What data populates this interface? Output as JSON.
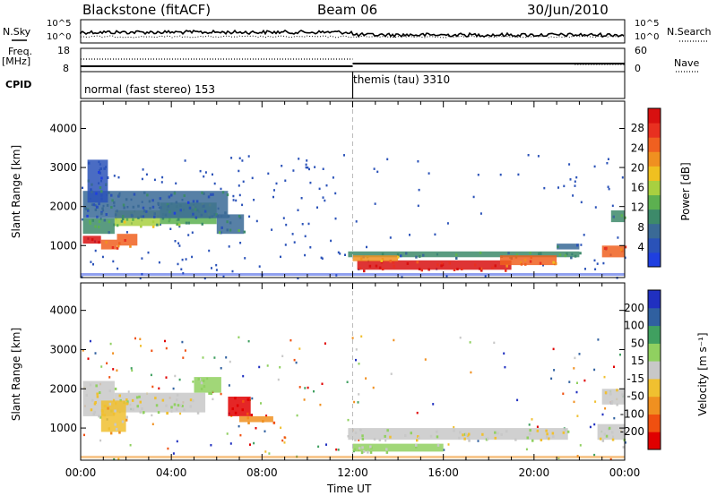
{
  "header": {
    "radar": "Blackstone (fitACF)",
    "beam": "Beam 06",
    "date": "30/Jun/2010"
  },
  "aux": {
    "nsky_label": "N.Sky",
    "nsky_ticks": [
      "10^5",
      "10^0"
    ],
    "nsearch_label": "N.Search",
    "nsearch_ticks": [
      "10^5",
      "10^0"
    ],
    "freq_label": "Freq.",
    "freq_unit": "[MHz]",
    "freq_ticks": [
      "18",
      "8"
    ],
    "nave_label": "Nave",
    "nave_ticks": [
      "60",
      "0"
    ],
    "cpid_label": "CPID",
    "cpid_segments": [
      {
        "label": "normal (fast stereo) 153",
        "start_hour": 0
      },
      {
        "label": "themis (tau) 3310",
        "start_hour": 12
      }
    ]
  },
  "chart_data": [
    {
      "type": "heatmap",
      "panel": "power",
      "ylabel": "Slant Range [km]",
      "y_ticks": [
        "1000",
        "2000",
        "3000",
        "4000"
      ],
      "ylim": [
        180,
        4700
      ],
      "xlim_hours": [
        0,
        24
      ],
      "colorbar": {
        "label": "Power [dB]",
        "ticks": [
          "4",
          "8",
          "12",
          "16",
          "20",
          "24",
          "28"
        ],
        "colors": [
          "#1f3fe0",
          "#2a52b8",
          "#3a6a96",
          "#3d8a6a",
          "#5cb050",
          "#a8d040",
          "#f0c020",
          "#f09020",
          "#f06020",
          "#e83020",
          "#d81010"
        ],
        "range": [
          0,
          30
        ]
      },
      "regions": [
        {
          "t0": 0.1,
          "t1": 0.9,
          "r0": 1050,
          "r1": 1250,
          "level": 28
        },
        {
          "t0": 0.9,
          "t1": 1.6,
          "r0": 900,
          "r1": 1150,
          "level": 24
        },
        {
          "t0": 1.6,
          "t1": 2.5,
          "r0": 1000,
          "r1": 1300,
          "level": 22
        },
        {
          "t0": 0.1,
          "t1": 1.5,
          "r0": 1300,
          "r1": 1700,
          "level": 10
        },
        {
          "t0": 1.5,
          "t1": 3.5,
          "r0": 1500,
          "r1": 1900,
          "level": 14
        },
        {
          "t0": 3.5,
          "t1": 6.0,
          "r0": 1550,
          "r1": 2100,
          "level": 12
        },
        {
          "t0": 0.1,
          "t1": 6.5,
          "r0": 1700,
          "r1": 2400,
          "level": 6
        },
        {
          "t0": 6.0,
          "t1": 7.2,
          "r0": 1300,
          "r1": 1800,
          "level": 8
        },
        {
          "t0": 0.3,
          "t1": 1.2,
          "r0": 2100,
          "r1": 3200,
          "level": 5
        },
        {
          "t0": 11.8,
          "t1": 22.0,
          "r0": 700,
          "r1": 850,
          "level": 9
        },
        {
          "t0": 12.2,
          "t1": 19.0,
          "r0": 380,
          "r1": 620,
          "level": 28
        },
        {
          "t0": 12.0,
          "t1": 14.0,
          "r0": 600,
          "r1": 750,
          "level": 20
        },
        {
          "t0": 18.5,
          "t1": 21.0,
          "r0": 500,
          "r1": 750,
          "level": 22
        },
        {
          "t0": 21.0,
          "t1": 22.0,
          "r0": 900,
          "r1": 1050,
          "level": 6
        },
        {
          "t0": 23.0,
          "t1": 24.0,
          "r0": 700,
          "r1": 1000,
          "level": 22
        },
        {
          "t0": 23.4,
          "t1": 24.0,
          "r0": 1600,
          "r1": 1900,
          "level": 10
        }
      ]
    },
    {
      "type": "heatmap",
      "panel": "velocity",
      "ylabel": "Slant Range [km]",
      "y_ticks": [
        "1000",
        "2000",
        "3000",
        "4000"
      ],
      "ylim": [
        180,
        4700
      ],
      "xlim_hours": [
        0,
        24
      ],
      "colorbar": {
        "label": "Velocity [m s⁻¹]",
        "ticks": [
          "-200",
          "-100",
          "-50",
          "-15",
          "15",
          "50",
          "100",
          "200"
        ],
        "colors": [
          "#e00000",
          "#f05010",
          "#f09020",
          "#f0c030",
          "#c8c8c8",
          "#90d060",
          "#40a060",
          "#3060a0",
          "#2030c0"
        ],
        "range": [
          -250,
          250
        ]
      },
      "regions": [
        {
          "t0": 0.1,
          "t1": 1.5,
          "r0": 1300,
          "r1": 2200,
          "level": 0
        },
        {
          "t0": 1.5,
          "t1": 5.5,
          "r0": 1400,
          "r1": 1900,
          "level": 0
        },
        {
          "t0": 0.9,
          "t1": 2.0,
          "r0": 900,
          "r1": 1700,
          "level": -60
        },
        {
          "t0": 6.5,
          "t1": 7.5,
          "r0": 1300,
          "r1": 1800,
          "level": -220
        },
        {
          "t0": 7.0,
          "t1": 8.5,
          "r0": 1150,
          "r1": 1300,
          "level": -120
        },
        {
          "t0": 5.0,
          "t1": 6.2,
          "r0": 1900,
          "r1": 2300,
          "level": 30
        },
        {
          "t0": 11.8,
          "t1": 21.5,
          "r0": 700,
          "r1": 1000,
          "level": 0
        },
        {
          "t0": 12.0,
          "t1": 16.0,
          "r0": 400,
          "r1": 600,
          "level": 30
        },
        {
          "t0": 22.8,
          "t1": 24.0,
          "r0": 700,
          "r1": 1100,
          "level": 0
        },
        {
          "t0": 23.0,
          "t1": 24.0,
          "r0": 1600,
          "r1": 2000,
          "level": 0
        }
      ]
    }
  ],
  "x_axis": {
    "ticks": [
      "00:00",
      "04:00",
      "08:00",
      "12:00",
      "16:00",
      "20:00",
      "00:00"
    ],
    "label": "Time UT"
  }
}
